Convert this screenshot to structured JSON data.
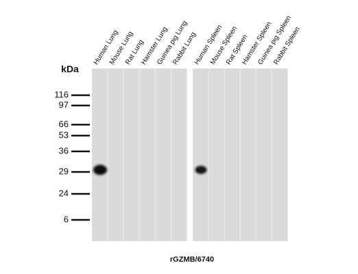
{
  "unit_label": "kDa",
  "markers": [
    116,
    97,
    66,
    53,
    36,
    29,
    24,
    6
  ],
  "panels": [
    {
      "lanes": [
        "Human Lung",
        "Mouse Lung",
        "Rat Lung",
        "Hamster Lung",
        "Guinea pig Lung",
        "Rabbit Lung"
      ]
    },
    {
      "lanes": [
        "Human Spleen",
        "Mouse Spleen",
        "Rat Spleen",
        "Hamster Spleen",
        "Guinea pig Spleen",
        "Rabbit Spleen"
      ]
    }
  ],
  "caption": "rGZMB/6740"
}
